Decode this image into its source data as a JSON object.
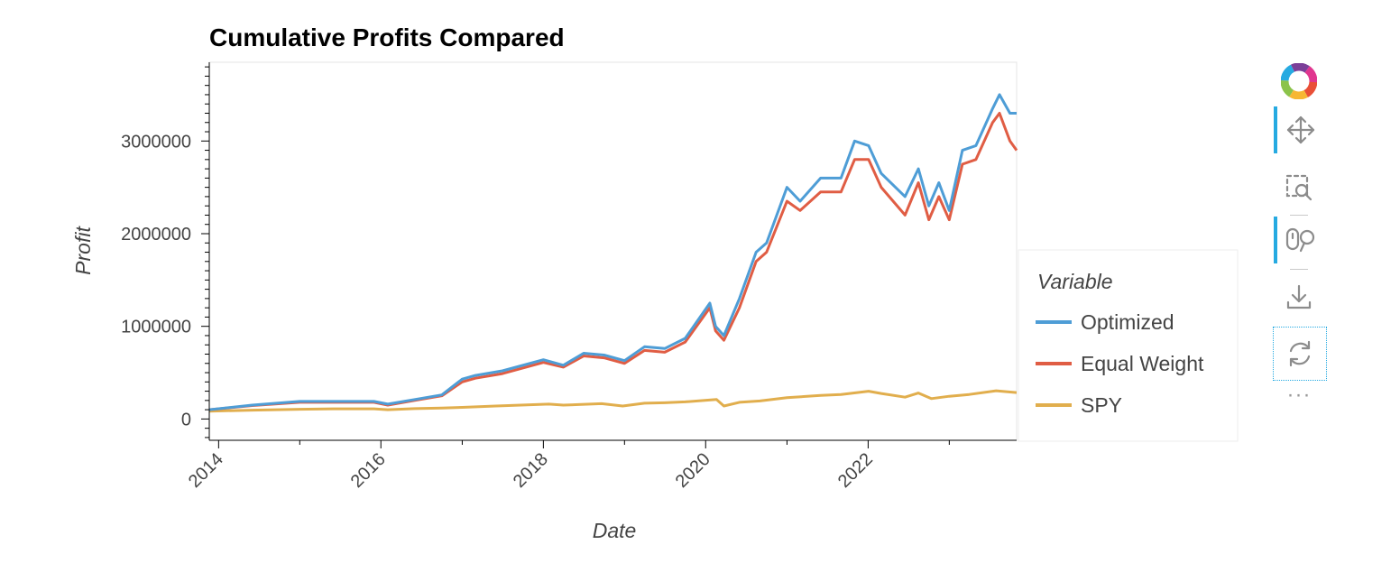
{
  "chart_data": {
    "type": "line",
    "title": "Cumulative Profits Compared",
    "xlabel": "Date",
    "ylabel": "Profit",
    "xlim": [
      "2013-11-20",
      "2023-10-31"
    ],
    "ylim": [
      -230000,
      3850000
    ],
    "x_ticks": [
      "2014",
      "2016",
      "2018",
      "2020",
      "2022"
    ],
    "y_ticks": [
      0,
      1000000,
      2000000,
      3000000
    ],
    "y_tick_labels": [
      "0",
      "1000000",
      "2000000",
      "3000000"
    ],
    "grid": false,
    "legend": {
      "title": "Variable",
      "placement": "right"
    },
    "series": [
      {
        "name": "Optimized",
        "color": "#4e9dd6",
        "x": [
          "2013-11-20",
          "2014-06-01",
          "2015-01-01",
          "2015-06-01",
          "2015-12-01",
          "2016-02-01",
          "2016-06-01",
          "2016-10-01",
          "2017-01-01",
          "2017-03-01",
          "2017-07-01",
          "2018-01-01",
          "2018-04-01",
          "2018-07-01",
          "2018-10-01",
          "2019-01-01",
          "2019-04-01",
          "2019-07-01",
          "2019-10-01",
          "2020-01-20",
          "2020-02-15",
          "2020-03-23",
          "2020-06-01",
          "2020-08-15",
          "2020-10-01",
          "2021-01-01",
          "2021-03-01",
          "2021-06-01",
          "2021-09-01",
          "2021-11-01",
          "2022-01-03",
          "2022-03-01",
          "2022-06-16",
          "2022-08-15",
          "2022-10-01",
          "2022-11-15",
          "2023-01-01",
          "2023-03-01",
          "2023-05-01",
          "2023-07-15",
          "2023-08-15",
          "2023-10-01",
          "2023-10-31"
        ],
        "values": [
          100000,
          150000,
          190000,
          190000,
          190000,
          160000,
          210000,
          260000,
          430000,
          470000,
          520000,
          640000,
          580000,
          710000,
          690000,
          630000,
          780000,
          760000,
          870000,
          1250000,
          1000000,
          900000,
          1300000,
          1800000,
          1900000,
          2500000,
          2350000,
          2600000,
          2600000,
          3000000,
          2950000,
          2650000,
          2400000,
          2700000,
          2300000,
          2550000,
          2250000,
          2900000,
          2950000,
          3350000,
          3500000,
          3300000,
          3300000
        ]
      },
      {
        "name": "Equal Weight",
        "color": "#e05d44",
        "x": [
          "2013-11-20",
          "2014-06-01",
          "2015-01-01",
          "2015-06-01",
          "2015-12-01",
          "2016-02-01",
          "2016-06-01",
          "2016-10-01",
          "2017-01-01",
          "2017-03-01",
          "2017-07-01",
          "2018-01-01",
          "2018-04-01",
          "2018-07-01",
          "2018-10-01",
          "2019-01-01",
          "2019-04-01",
          "2019-07-01",
          "2019-10-01",
          "2020-01-20",
          "2020-02-15",
          "2020-03-23",
          "2020-06-01",
          "2020-08-15",
          "2020-10-01",
          "2021-01-01",
          "2021-03-01",
          "2021-06-01",
          "2021-09-01",
          "2021-11-01",
          "2022-01-03",
          "2022-03-01",
          "2022-06-16",
          "2022-08-15",
          "2022-10-01",
          "2022-11-15",
          "2023-01-01",
          "2023-03-01",
          "2023-05-01",
          "2023-07-15",
          "2023-08-15",
          "2023-10-01",
          "2023-10-31"
        ],
        "values": [
          100000,
          145000,
          180000,
          180000,
          180000,
          150000,
          200000,
          250000,
          400000,
          440000,
          490000,
          610000,
          560000,
          680000,
          660000,
          600000,
          740000,
          720000,
          830000,
          1200000,
          950000,
          850000,
          1200000,
          1700000,
          1800000,
          2350000,
          2250000,
          2450000,
          2450000,
          2800000,
          2800000,
          2500000,
          2200000,
          2550000,
          2150000,
          2400000,
          2150000,
          2750000,
          2800000,
          3200000,
          3300000,
          3000000,
          2900000
        ]
      },
      {
        "name": "SPY",
        "color": "#e1ae4d",
        "x": [
          "2013-11-20",
          "2014-06-01",
          "2015-01-01",
          "2015-06-01",
          "2015-12-01",
          "2016-02-01",
          "2016-06-01",
          "2016-10-01",
          "2017-01-01",
          "2017-06-01",
          "2018-01-26",
          "2018-04-01",
          "2018-09-20",
          "2018-12-24",
          "2019-04-01",
          "2019-07-01",
          "2019-10-01",
          "2020-02-19",
          "2020-03-23",
          "2020-06-01",
          "2020-09-01",
          "2021-01-01",
          "2021-06-01",
          "2021-09-01",
          "2022-01-03",
          "2022-03-01",
          "2022-06-16",
          "2022-08-15",
          "2022-10-12",
          "2023-01-01",
          "2023-04-01",
          "2023-07-31",
          "2023-10-31"
        ],
        "values": [
          85000,
          95000,
          105000,
          110000,
          110000,
          100000,
          112000,
          118000,
          125000,
          140000,
          160000,
          150000,
          165000,
          140000,
          170000,
          175000,
          185000,
          210000,
          140000,
          180000,
          195000,
          230000,
          255000,
          265000,
          300000,
          275000,
          235000,
          280000,
          220000,
          245000,
          265000,
          305000,
          285000
        ]
      }
    ]
  },
  "toolbar": {
    "tools": [
      {
        "name": "bokeh-logo",
        "icon": "bokeh-logo-icon"
      },
      {
        "name": "pan",
        "icon": "pan-icon",
        "active": true
      },
      {
        "name": "box-zoom",
        "icon": "box-zoom-icon"
      },
      {
        "name": "wheel-zoom",
        "icon": "wheel-zoom-icon",
        "active": true
      },
      {
        "name": "save",
        "icon": "save-icon"
      },
      {
        "name": "reset",
        "icon": "reset-icon"
      }
    ],
    "more_label": "···"
  }
}
